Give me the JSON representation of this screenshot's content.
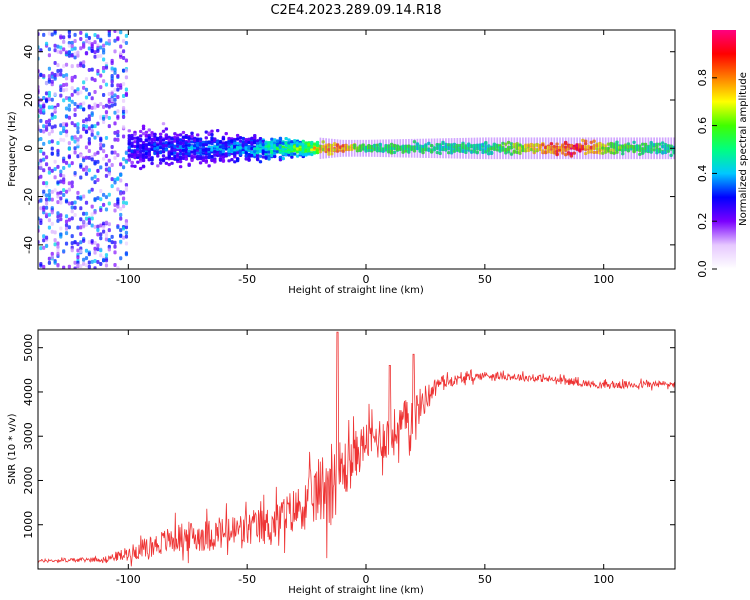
{
  "title": "C2E4.2023.289.09.14.R18",
  "chart_data": [
    {
      "type": "heatmap",
      "title": "C2E4.2023.289.09.14.R18",
      "xlabel": "Height of straight line (km)",
      "ylabel": "Frequency (Hz)",
      "xlim": [
        -138,
        130
      ],
      "ylim": [
        -50,
        49
      ],
      "xticks": [
        -100,
        -50,
        0,
        50,
        100
      ],
      "yticks": [
        -40,
        -20,
        0,
        20,
        40
      ],
      "description_points": [
        {
          "x": -125,
          "spread_hz": 50,
          "amplitude": 0.15
        },
        {
          "x": -100,
          "spread_hz": 10,
          "amplitude": 0.3
        },
        {
          "x": -50,
          "spread_hz": 6,
          "amplitude": 0.4
        },
        {
          "x": -10,
          "spread_hz": 2,
          "amplitude": 0.8
        },
        {
          "x": 0,
          "spread_hz": 2,
          "amplitude": 0.55
        },
        {
          "x": 50,
          "spread_hz": 3,
          "amplitude": 0.5
        },
        {
          "x": 88,
          "spread_hz": 3,
          "amplitude": 0.9
        },
        {
          "x": 105,
          "spread_hz": 3,
          "amplitude": 0.6
        },
        {
          "x": 130,
          "spread_hz": 3,
          "amplitude": 0.5
        }
      ],
      "colorbar": {
        "label": "Normalized spectral amplitude",
        "range": [
          0.0,
          1.0
        ],
        "ticks": [
          "0.0",
          "0.2",
          "0.4",
          "0.6",
          "0.8"
        ],
        "tick_values": [
          0.0,
          0.2,
          0.4,
          0.6,
          0.8
        ],
        "colors": [
          "#ffffff",
          "#e6c8ff",
          "#7a00ff",
          "#0000ff",
          "#00c8ff",
          "#00ff80",
          "#40ff00",
          "#ffff00",
          "#ff8000",
          "#ff0000",
          "#ff0080"
        ]
      }
    },
    {
      "type": "line",
      "xlabel": "Height of straight line (km)",
      "ylabel": "SNR (10 * v/v)",
      "xlim": [
        -138,
        130
      ],
      "ylim": [
        0,
        5400
      ],
      "xticks": [
        -100,
        -50,
        0,
        50,
        100
      ],
      "yticks": [
        1000,
        2000,
        3000,
        4000,
        5000
      ],
      "color": "#ee3333",
      "envelope": [
        {
          "x": -138,
          "mean": 180,
          "noise": 60
        },
        {
          "x": -110,
          "mean": 220,
          "noise": 100
        },
        {
          "x": -100,
          "mean": 350,
          "noise": 300
        },
        {
          "x": -80,
          "mean": 700,
          "noise": 600
        },
        {
          "x": -60,
          "mean": 800,
          "noise": 700
        },
        {
          "x": -40,
          "mean": 1000,
          "noise": 800
        },
        {
          "x": -25,
          "mean": 1500,
          "noise": 1000
        },
        {
          "x": -15,
          "mean": 2000,
          "noise": 1800
        },
        {
          "x": -8,
          "mean": 2300,
          "noise": 1200
        },
        {
          "x": 0,
          "mean": 2900,
          "noise": 800
        },
        {
          "x": 10,
          "mean": 3000,
          "noise": 1000
        },
        {
          "x": 20,
          "mean": 3500,
          "noise": 900
        },
        {
          "x": 30,
          "mean": 4200,
          "noise": 250
        },
        {
          "x": 50,
          "mean": 4380,
          "noise": 150
        },
        {
          "x": 75,
          "mean": 4300,
          "noise": 150
        },
        {
          "x": 100,
          "mean": 4150,
          "noise": 150
        },
        {
          "x": 130,
          "mean": 4180,
          "noise": 150
        }
      ],
      "peaks": [
        {
          "x": -12,
          "y": 5350
        },
        {
          "x": 20,
          "y": 4850
        },
        {
          "x": 10,
          "y": 4600
        }
      ]
    }
  ]
}
